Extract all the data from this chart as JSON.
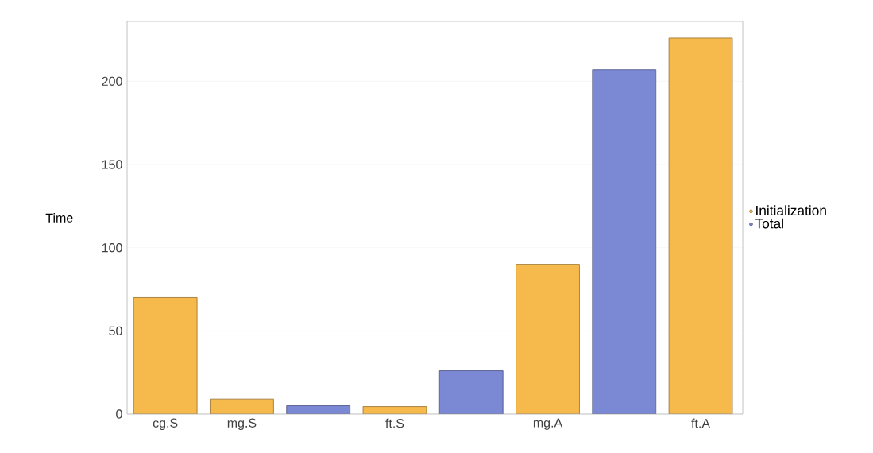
{
  "chart_data": {
    "type": "bar",
    "ylabel": "Time",
    "categories": [
      "cg.S",
      "mg.S",
      null,
      "ft.S",
      null,
      "mg.A",
      null,
      "ft.A"
    ],
    "series": [
      {
        "name": "Initialization",
        "color": "#f6b94b",
        "values": [
          70,
          9,
          null,
          4.5,
          null,
          90,
          null,
          226
        ]
      },
      {
        "name": "Total",
        "color": "#7b88d3",
        "values": [
          null,
          null,
          5,
          null,
          26,
          null,
          207,
          null
        ]
      }
    ],
    "ylim": [
      0,
      236
    ],
    "yticks": [
      0,
      50,
      100,
      150,
      200
    ],
    "grid": "y",
    "legend": "right"
  }
}
